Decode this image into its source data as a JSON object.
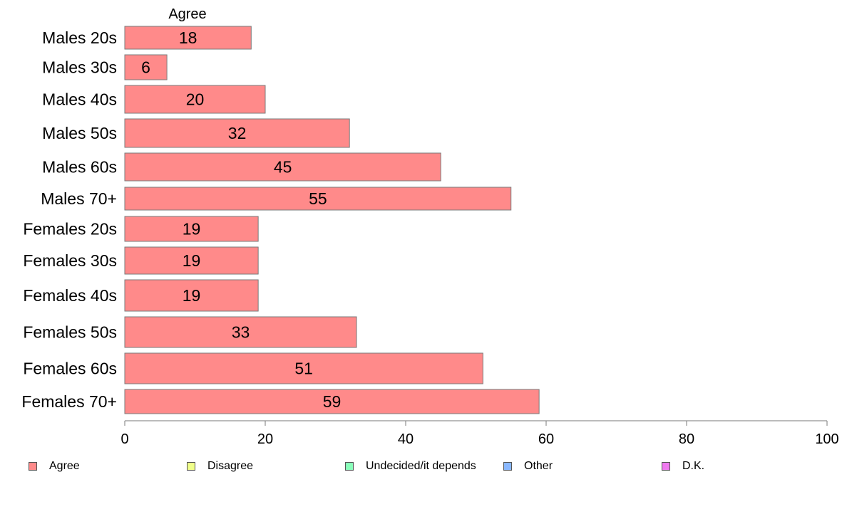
{
  "chart_data": {
    "type": "bar",
    "orientation": "horizontal",
    "series_label": "Agree",
    "categories": [
      "Males 20s",
      "Males 30s",
      "Males 40s",
      "Males 50s",
      "Males 60s",
      "Males 70+",
      "Females 20s",
      "Females 30s",
      "Females 40s",
      "Females 50s",
      "Females 60s",
      "Females 70+"
    ],
    "series": [
      {
        "name": "Agree",
        "color": "#ff8a8a",
        "values": [
          18,
          6,
          20,
          32,
          45,
          55,
          19,
          19,
          19,
          33,
          51,
          59
        ]
      }
    ],
    "xlim": [
      0,
      100
    ],
    "xticks": [
      0,
      20,
      40,
      60,
      80,
      100
    ],
    "grid": false,
    "legend_position": "bottom",
    "legend": [
      {
        "label": "Agree",
        "color": "#ff8a8a"
      },
      {
        "label": "Disagree",
        "color": "#f0ff8a"
      },
      {
        "label": "Undecided/it depends",
        "color": "#8affba"
      },
      {
        "label": "Other",
        "color": "#8ab8ff"
      },
      {
        "label": "D.K.",
        "color": "#f07af0"
      }
    ]
  }
}
